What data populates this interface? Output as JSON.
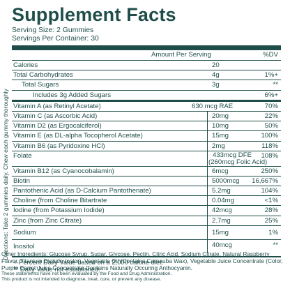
{
  "side_text": "Directions: Take 2 gummies daily. Chew each gummy thoroughly",
  "title": "Supplement Facts",
  "serving_size": "Serving Size: 2 Gummies",
  "servings_per_container": "Servings Per Container: 30",
  "header": {
    "amount": "Amount Per Serving",
    "dv": "%DV"
  },
  "rows": [
    {
      "name": "Calories",
      "amount": "20",
      "dv": ""
    },
    {
      "name": "Total Carbohydrates",
      "amount": "4g",
      "dv": "1%+"
    },
    {
      "name": "Total Sugars",
      "amount": "3g",
      "dv": "**"
    },
    {
      "name": "Includes 3g Added Sugars",
      "amount": "",
      "dv": "6%+"
    },
    {
      "name": "Vitamin A (as Retinyl Acetate)",
      "amount": "630 mcg RAE",
      "dv": "70%"
    },
    {
      "name": "Vitamin C (as Ascorbic Acid)",
      "amount": "20mg",
      "dv": "22%"
    },
    {
      "name": "Vitamin D2 (as Ergocalciferol)",
      "amount": "10mg",
      "dv": "50%"
    },
    {
      "name": "Vitamin E (as DL-alpha Tocopherol Acetate)",
      "amount": "15mg",
      "dv": "100%"
    },
    {
      "name": "Vitamin B6 (as Pyridoxine HCl)",
      "amount": "2mg",
      "dv": "118%"
    },
    {
      "name": "Folate",
      "amount": "433mcg DFE",
      "amount2": "(260mcg Folic Acid)",
      "dv": "108%"
    },
    {
      "name": "Vitamin B12 (as Cyanocobalamin)",
      "amount": "6mcg",
      "dv": "250%"
    },
    {
      "name": "Biotin",
      "amount": "5000mcg",
      "dv": "16,667%"
    },
    {
      "name": "Pantothenic Acid (as D-Calcium Pantothenate)",
      "amount": "5.2mg",
      "dv": "104%"
    },
    {
      "name": "Choline (from Choline Bitartrate",
      "amount": "0.04mg",
      "dv": "<1%"
    },
    {
      "name": "Iodine (from Potassium Iodide)",
      "amount": "42mcg",
      "dv": "28%"
    },
    {
      "name": "Zinc (from Zinc Citrate)",
      "amount": "2.7mg",
      "dv": "25%"
    },
    {
      "name": "Sodium",
      "amount": "15mg",
      "dv": "1%"
    },
    {
      "name": "Inositol",
      "amount": "40mcg",
      "dv": "**"
    }
  ],
  "footnotes": [
    "+ Percent Daily Value based on a 2,000 calorie diet.",
    "** Daily Value not established."
  ],
  "ingredients": "Other Ingredients: Glucose Syrup, Sugar, Glycose, Pectin, Citric Acid, Sodium Citrate, Natural Raspberry Flavor, Titanium Dioxide (color), Vegetable Oil (Contains Carnauba Wax), Vegetable Juice Concentrate (Color, Purple Carrot Juice Concentrate Contains Naturally Occuring Anthocyanin.",
  "disclaimer_1": "These statements have not been evaluated by the Food and Drug Administration.",
  "disclaimer_2": "This product is not intended to diagnose, treat, cure, or prevent any disease.",
  "colors": {
    "ink": "#1f4e4a",
    "background": "#ffffff"
  }
}
